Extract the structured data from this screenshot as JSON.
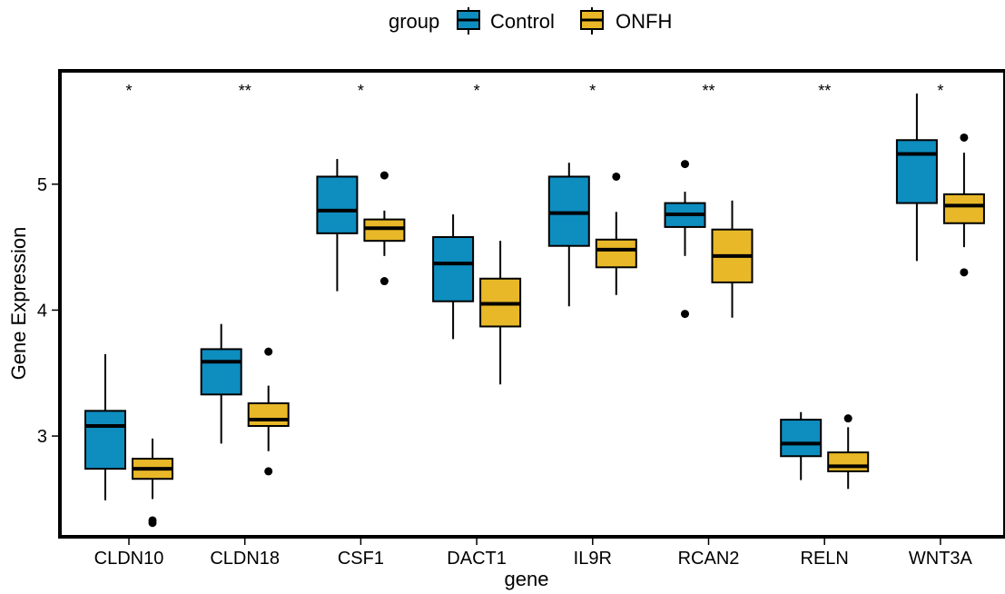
{
  "chart_data": {
    "type": "box",
    "title": "",
    "xlabel": "gene",
    "ylabel": "Gene Expression",
    "ylim": [
      2.2,
      5.9
    ],
    "yticks": [
      3,
      4,
      5
    ],
    "grid": false,
    "legend": {
      "title": "group",
      "position": "top",
      "entries": [
        {
          "name": "Control",
          "color": "#0E8DBF"
        },
        {
          "name": "ONFH",
          "color": "#E8B828"
        }
      ]
    },
    "categories": [
      "CLDN10",
      "CLDN18",
      "CSF1",
      "DACT1",
      "IL9R",
      "RCAN2",
      "RELN",
      "WNT3A"
    ],
    "significance": [
      "*",
      "**",
      "*",
      "*",
      "*",
      "**",
      "**",
      "*"
    ],
    "series": [
      {
        "name": "Control",
        "color": "#0E8DBF",
        "boxes": [
          {
            "q1": 2.74,
            "median": 3.08,
            "q3": 3.2,
            "whisker_low": 2.49,
            "whisker_high": 3.65,
            "outliers": []
          },
          {
            "q1": 3.33,
            "median": 3.59,
            "q3": 3.69,
            "whisker_low": 2.94,
            "whisker_high": 3.89,
            "outliers": []
          },
          {
            "q1": 4.61,
            "median": 4.79,
            "q3": 5.06,
            "whisker_low": 4.15,
            "whisker_high": 5.2,
            "outliers": []
          },
          {
            "q1": 4.07,
            "median": 4.37,
            "q3": 4.58,
            "whisker_low": 3.77,
            "whisker_high": 4.76,
            "outliers": []
          },
          {
            "q1": 4.51,
            "median": 4.77,
            "q3": 5.06,
            "whisker_low": 4.03,
            "whisker_high": 5.17,
            "outliers": []
          },
          {
            "q1": 4.66,
            "median": 4.76,
            "q3": 4.85,
            "whisker_low": 4.43,
            "whisker_high": 4.94,
            "outliers": [
              5.16,
              3.97
            ]
          },
          {
            "q1": 2.84,
            "median": 2.94,
            "q3": 3.13,
            "whisker_low": 2.65,
            "whisker_high": 3.19,
            "outliers": []
          },
          {
            "q1": 4.85,
            "median": 5.24,
            "q3": 5.35,
            "whisker_low": 4.39,
            "whisker_high": 5.72,
            "outliers": []
          }
        ]
      },
      {
        "name": "ONFH",
        "color": "#E8B828",
        "boxes": [
          {
            "q1": 2.66,
            "median": 2.74,
            "q3": 2.82,
            "whisker_low": 2.5,
            "whisker_high": 2.98,
            "outliers": [
              2.33,
              2.31
            ]
          },
          {
            "q1": 3.08,
            "median": 3.13,
            "q3": 3.26,
            "whisker_low": 2.88,
            "whisker_high": 3.4,
            "outliers": [
              3.67,
              2.72
            ]
          },
          {
            "q1": 4.55,
            "median": 4.65,
            "q3": 4.72,
            "whisker_low": 4.43,
            "whisker_high": 4.79,
            "outliers": [
              5.07,
              4.23
            ]
          },
          {
            "q1": 3.87,
            "median": 4.05,
            "q3": 4.25,
            "whisker_low": 3.41,
            "whisker_high": 4.55,
            "outliers": []
          },
          {
            "q1": 4.34,
            "median": 4.48,
            "q3": 4.56,
            "whisker_low": 4.12,
            "whisker_high": 4.78,
            "outliers": [
              5.06
            ]
          },
          {
            "q1": 4.22,
            "median": 4.43,
            "q3": 4.64,
            "whisker_low": 3.94,
            "whisker_high": 4.87,
            "outliers": []
          },
          {
            "q1": 2.72,
            "median": 2.76,
            "q3": 2.87,
            "whisker_low": 2.58,
            "whisker_high": 3.07,
            "outliers": [
              3.14
            ]
          },
          {
            "q1": 4.69,
            "median": 4.83,
            "q3": 4.92,
            "whisker_low": 4.5,
            "whisker_high": 5.25,
            "outliers": [
              5.37,
              4.3
            ]
          }
        ]
      }
    ]
  }
}
